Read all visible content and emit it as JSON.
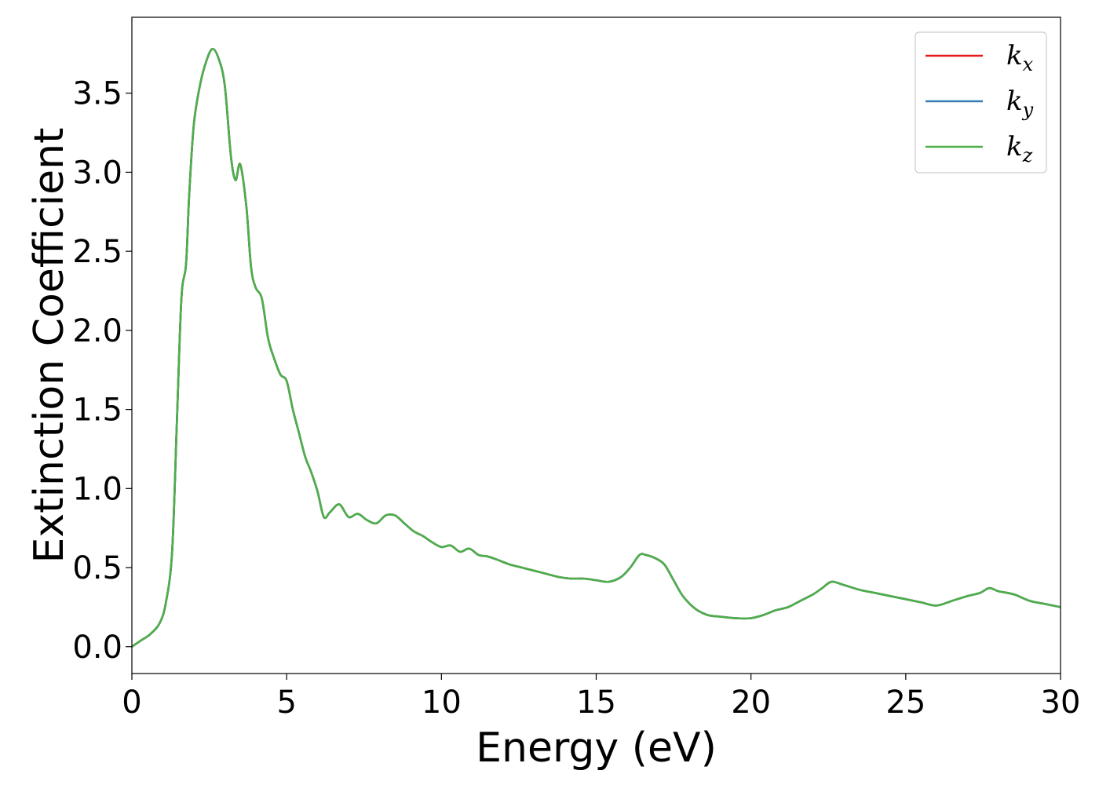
{
  "chart_data": {
    "type": "line",
    "title": "",
    "xlabel": "Energy (eV)",
    "ylabel": "Extinction Coefficient",
    "xlim": [
      0,
      30
    ],
    "ylim": [
      -0.17,
      3.98
    ],
    "xticks": [
      0,
      5,
      10,
      15,
      20,
      25,
      30
    ],
    "xtick_labels": [
      "0",
      "5",
      "10",
      "15",
      "20",
      "25",
      "30"
    ],
    "yticks": [
      0.0,
      0.5,
      1.0,
      1.5,
      2.0,
      2.5,
      3.0,
      3.5
    ],
    "ytick_labels": [
      "0.0",
      "0.5",
      "1.0",
      "1.5",
      "2.0",
      "2.5",
      "3.0",
      "3.5"
    ],
    "grid": false,
    "legend_position": "top-right",
    "series": [
      {
        "name": "k",
        "subscript": "x",
        "color": "#e41a1c"
      },
      {
        "name": "k",
        "subscript": "y",
        "color": "#377eb8"
      },
      {
        "name": "k",
        "subscript": "z",
        "color": "#4daf4a"
      }
    ],
    "x": [
      0,
      0.3,
      0.6,
      0.9,
      1.1,
      1.3,
      1.45,
      1.6,
      1.75,
      1.85,
      2.0,
      2.2,
      2.4,
      2.6,
      2.8,
      3.0,
      3.2,
      3.35,
      3.5,
      3.7,
      3.85,
      4.0,
      4.2,
      4.4,
      4.6,
      4.8,
      5.0,
      5.2,
      5.4,
      5.6,
      5.8,
      6.0,
      6.2,
      6.4,
      6.7,
      7.0,
      7.3,
      7.6,
      7.9,
      8.2,
      8.5,
      8.8,
      9.1,
      9.4,
      9.7,
      10.0,
      10.3,
      10.6,
      10.9,
      11.2,
      11.5,
      11.8,
      12.2,
      12.6,
      13.0,
      13.4,
      13.8,
      14.2,
      14.6,
      15.0,
      15.4,
      15.8,
      16.1,
      16.4,
      16.6,
      16.9,
      17.2,
      17.5,
      17.8,
      18.2,
      18.6,
      19.0,
      19.5,
      20.0,
      20.4,
      20.8,
      21.2,
      21.6,
      22.0,
      22.3,
      22.6,
      23.0,
      23.5,
      24.0,
      24.5,
      25.0,
      25.5,
      26.0,
      26.5,
      27.0,
      27.4,
      27.7,
      28.0,
      28.5,
      29.0,
      29.5,
      30.0
    ],
    "y": [
      0.0,
      0.04,
      0.08,
      0.15,
      0.28,
      0.6,
      1.4,
      2.2,
      2.42,
      2.85,
      3.3,
      3.55,
      3.7,
      3.78,
      3.72,
      3.55,
      3.1,
      2.95,
      3.05,
      2.78,
      2.4,
      2.27,
      2.2,
      1.95,
      1.82,
      1.72,
      1.68,
      1.5,
      1.35,
      1.2,
      1.1,
      0.98,
      0.82,
      0.85,
      0.9,
      0.82,
      0.84,
      0.8,
      0.78,
      0.83,
      0.83,
      0.78,
      0.73,
      0.7,
      0.66,
      0.63,
      0.64,
      0.6,
      0.62,
      0.58,
      0.57,
      0.55,
      0.52,
      0.5,
      0.48,
      0.46,
      0.44,
      0.43,
      0.43,
      0.42,
      0.41,
      0.44,
      0.5,
      0.58,
      0.58,
      0.56,
      0.52,
      0.42,
      0.32,
      0.24,
      0.2,
      0.19,
      0.18,
      0.18,
      0.2,
      0.23,
      0.25,
      0.29,
      0.33,
      0.37,
      0.41,
      0.39,
      0.36,
      0.34,
      0.32,
      0.3,
      0.28,
      0.26,
      0.29,
      0.32,
      0.34,
      0.37,
      0.35,
      0.33,
      0.29,
      0.27,
      0.25
    ]
  }
}
